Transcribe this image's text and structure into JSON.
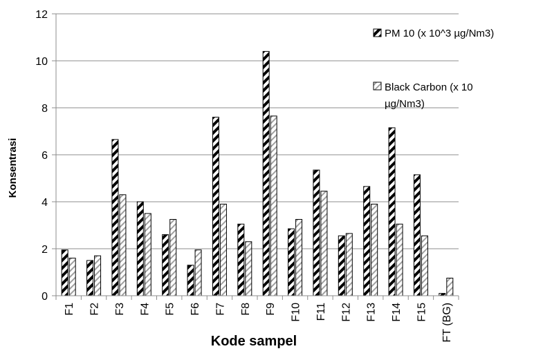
{
  "chart_data": {
    "type": "bar",
    "xlabel": "Kode sampel",
    "ylabel": "Konsentrasi",
    "ylim": [
      0,
      12
    ],
    "yticks": [
      0,
      2,
      4,
      6,
      8,
      10,
      12
    ],
    "grid": true,
    "legend_position": "right",
    "categories": [
      "F1",
      "F2",
      "F3",
      "F4",
      "F5",
      "F6",
      "F7",
      "F8",
      "F9",
      "F10",
      "F11",
      "F12",
      "F13",
      "F14",
      "F15",
      "FT (BG)"
    ],
    "series": [
      {
        "name": "PM 10  (x 10^3 µg/Nm3)",
        "pattern": "dark-diagonal",
        "values": [
          1.95,
          1.5,
          6.65,
          4.0,
          2.6,
          1.3,
          7.6,
          3.05,
          10.4,
          2.85,
          5.35,
          2.55,
          4.65,
          7.15,
          5.15,
          0.1
        ]
      },
      {
        "name": "Black Carbon (x 10 µg/Nm3)",
        "pattern": "light-diagonal",
        "values": [
          1.6,
          1.7,
          4.3,
          3.5,
          3.25,
          1.95,
          3.9,
          2.3,
          7.65,
          3.25,
          4.45,
          2.65,
          3.9,
          3.05,
          2.55,
          0.75
        ]
      }
    ],
    "colors": {
      "grid": "#8c8c8c",
      "axis": "#8c8c8c",
      "bar_outline": "#000000",
      "dark_stripe": "#000000",
      "light_stripe": "#a0a0a0"
    }
  },
  "legend": {
    "item1_line1": "PM 10  (x 10^3 µg/Nm3)",
    "item2_line1": "Black Carbon (x 10",
    "item2_line2": "µg/Nm3)"
  }
}
